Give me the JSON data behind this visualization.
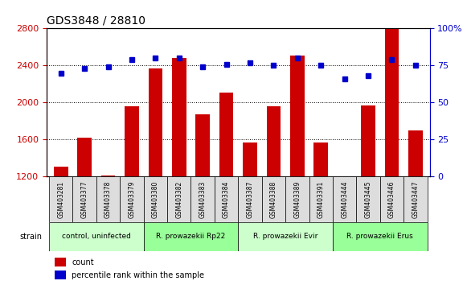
{
  "title": "GDS3848 / 28810",
  "samples": [
    "GSM403281",
    "GSM403377",
    "GSM403378",
    "GSM403379",
    "GSM403380",
    "GSM403382",
    "GSM403383",
    "GSM403384",
    "GSM403387",
    "GSM403388",
    "GSM403389",
    "GSM403391",
    "GSM403444",
    "GSM403445",
    "GSM403446",
    "GSM403447"
  ],
  "counts": [
    1310,
    1620,
    1215,
    1960,
    2370,
    2480,
    1870,
    2110,
    1570,
    1960,
    2510,
    1570,
    1185,
    1970,
    2810,
    1700
  ],
  "percentiles": [
    70,
    73,
    74,
    79,
    80,
    80,
    74,
    76,
    77,
    75,
    80,
    75,
    66,
    68,
    79,
    75
  ],
  "ylim_left": [
    1200,
    2800
  ],
  "ylim_right": [
    0,
    100
  ],
  "yticks_left": [
    1200,
    1600,
    2000,
    2400,
    2800
  ],
  "yticks_right": [
    0,
    25,
    50,
    75,
    100
  ],
  "bar_color": "#cc0000",
  "dot_color": "#0000cc",
  "grid_color": "#000000",
  "bg_color": "#ffffff",
  "tick_label_color_left": "#cc0000",
  "tick_label_color_right": "#0000cc",
  "groups": [
    {
      "label": "control, uninfected",
      "start": 0,
      "end": 3,
      "color": "#ccffcc"
    },
    {
      "label": "R. prowazekii Rp22",
      "start": 4,
      "end": 7,
      "color": "#99ff99"
    },
    {
      "label": "R. prowazekii Evir",
      "start": 8,
      "end": 11,
      "color": "#ccffcc"
    },
    {
      "label": "R. prowazekii Erus",
      "start": 12,
      "end": 15,
      "color": "#99ff99"
    }
  ],
  "xlabel_strain": "strain",
  "legend_count_label": "count",
  "legend_pct_label": "percentile rank within the sample"
}
